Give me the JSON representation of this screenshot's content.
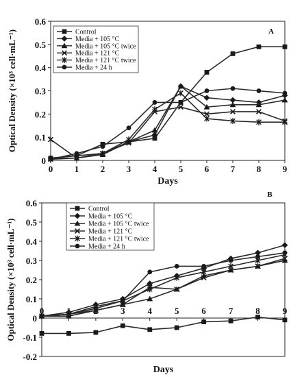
{
  "chart_data": [
    {
      "type": "line",
      "panel_label": "A",
      "xlabel": "Days",
      "ylabel": "Optical Density (×10³ cell·mL⁻¹)",
      "x": [
        0,
        1,
        2,
        3,
        4,
        5,
        6,
        7,
        8,
        9
      ],
      "xticks": [
        "0",
        "1",
        "2",
        "3",
        "4",
        "5",
        "6",
        "7",
        "8",
        "9"
      ],
      "yticks": [
        "0",
        "0.1",
        "0.2",
        "0.3",
        "0.4",
        "0.5",
        "0.6"
      ],
      "xlim": [
        0,
        9
      ],
      "ylim": [
        0,
        0.6
      ],
      "grid": false,
      "legend_position": "top-left",
      "series": [
        {
          "name": "Control",
          "marker": "square",
          "values": [
            0.01,
            0.02,
            0.07,
            0.08,
            0.095,
            0.25,
            0.38,
            0.46,
            0.49,
            0.49
          ]
        },
        {
          "name": "Media + 105 °C",
          "marker": "diamond",
          "values": [
            0.01,
            0.02,
            0.03,
            0.08,
            0.11,
            0.32,
            0.27,
            0.26,
            0.25,
            0.28
          ]
        },
        {
          "name": "Media + 105 °C twice",
          "marker": "triangle",
          "values": [
            0.01,
            0.01,
            0.025,
            0.08,
            0.13,
            0.32,
            0.23,
            0.24,
            0.24,
            0.26
          ]
        },
        {
          "name": "Media + 121 °C",
          "marker": "x",
          "values": [
            0.09,
            0.01,
            0.03,
            0.075,
            0.21,
            0.23,
            0.2,
            0.21,
            0.21,
            0.17
          ]
        },
        {
          "name": "Media + 121 °C twice",
          "marker": "star",
          "values": [
            0.005,
            0.01,
            0.03,
            0.09,
            0.22,
            0.29,
            0.18,
            0.17,
            0.165,
            0.165
          ]
        },
        {
          "name": "Media + 24 h",
          "marker": "circle",
          "values": [
            0.005,
            0.03,
            0.06,
            0.14,
            0.25,
            0.25,
            0.3,
            0.31,
            0.3,
            0.29
          ]
        }
      ]
    },
    {
      "type": "line",
      "panel_label": "B",
      "xlabel": "Days",
      "ylabel": "Optical Density (×10³ cell·mL⁻¹)",
      "x": [
        0,
        1,
        2,
        3,
        4,
        5,
        6,
        7,
        8,
        9
      ],
      "xticks": [
        "0",
        "1",
        "2",
        "3",
        "4",
        "5",
        "6",
        "7",
        "8",
        "9"
      ],
      "yticks": [
        "-0.2",
        "-0.1",
        "0",
        "0.1",
        "0.2",
        "0.3",
        "0.4",
        "0.5",
        "0.6"
      ],
      "xlim": [
        0,
        9
      ],
      "ylim": [
        -0.2,
        0.6
      ],
      "grid": false,
      "legend_position": "top-left",
      "series": [
        {
          "name": "Control",
          "marker": "square",
          "values": [
            -0.08,
            -0.08,
            -0.075,
            -0.04,
            -0.06,
            -0.05,
            -0.02,
            -0.015,
            0.005,
            -0.01
          ]
        },
        {
          "name": "Media + 105 °C",
          "marker": "diamond",
          "values": [
            0.01,
            0.03,
            0.07,
            0.1,
            0.18,
            0.22,
            0.26,
            0.31,
            0.34,
            0.38
          ]
        },
        {
          "name": "Media + 105 °C twice",
          "marker": "triangle",
          "values": [
            0.01,
            0.01,
            0.04,
            0.07,
            0.1,
            0.15,
            0.22,
            0.25,
            0.27,
            0.3
          ]
        },
        {
          "name": "Media + 121 °C",
          "marker": "x",
          "values": [
            0.01,
            0.02,
            0.04,
            0.07,
            0.16,
            0.15,
            0.21,
            0.25,
            0.27,
            0.31
          ]
        },
        {
          "name": "Media + 121 °C twice",
          "marker": "star",
          "values": [
            0.01,
            0.02,
            0.06,
            0.09,
            0.15,
            0.21,
            0.24,
            0.27,
            0.3,
            0.33
          ]
        },
        {
          "name": "Media + 24 h",
          "marker": "circle",
          "values": [
            0.01,
            0.02,
            0.05,
            0.09,
            0.24,
            0.27,
            0.27,
            0.3,
            0.32,
            0.34
          ]
        }
      ]
    }
  ]
}
